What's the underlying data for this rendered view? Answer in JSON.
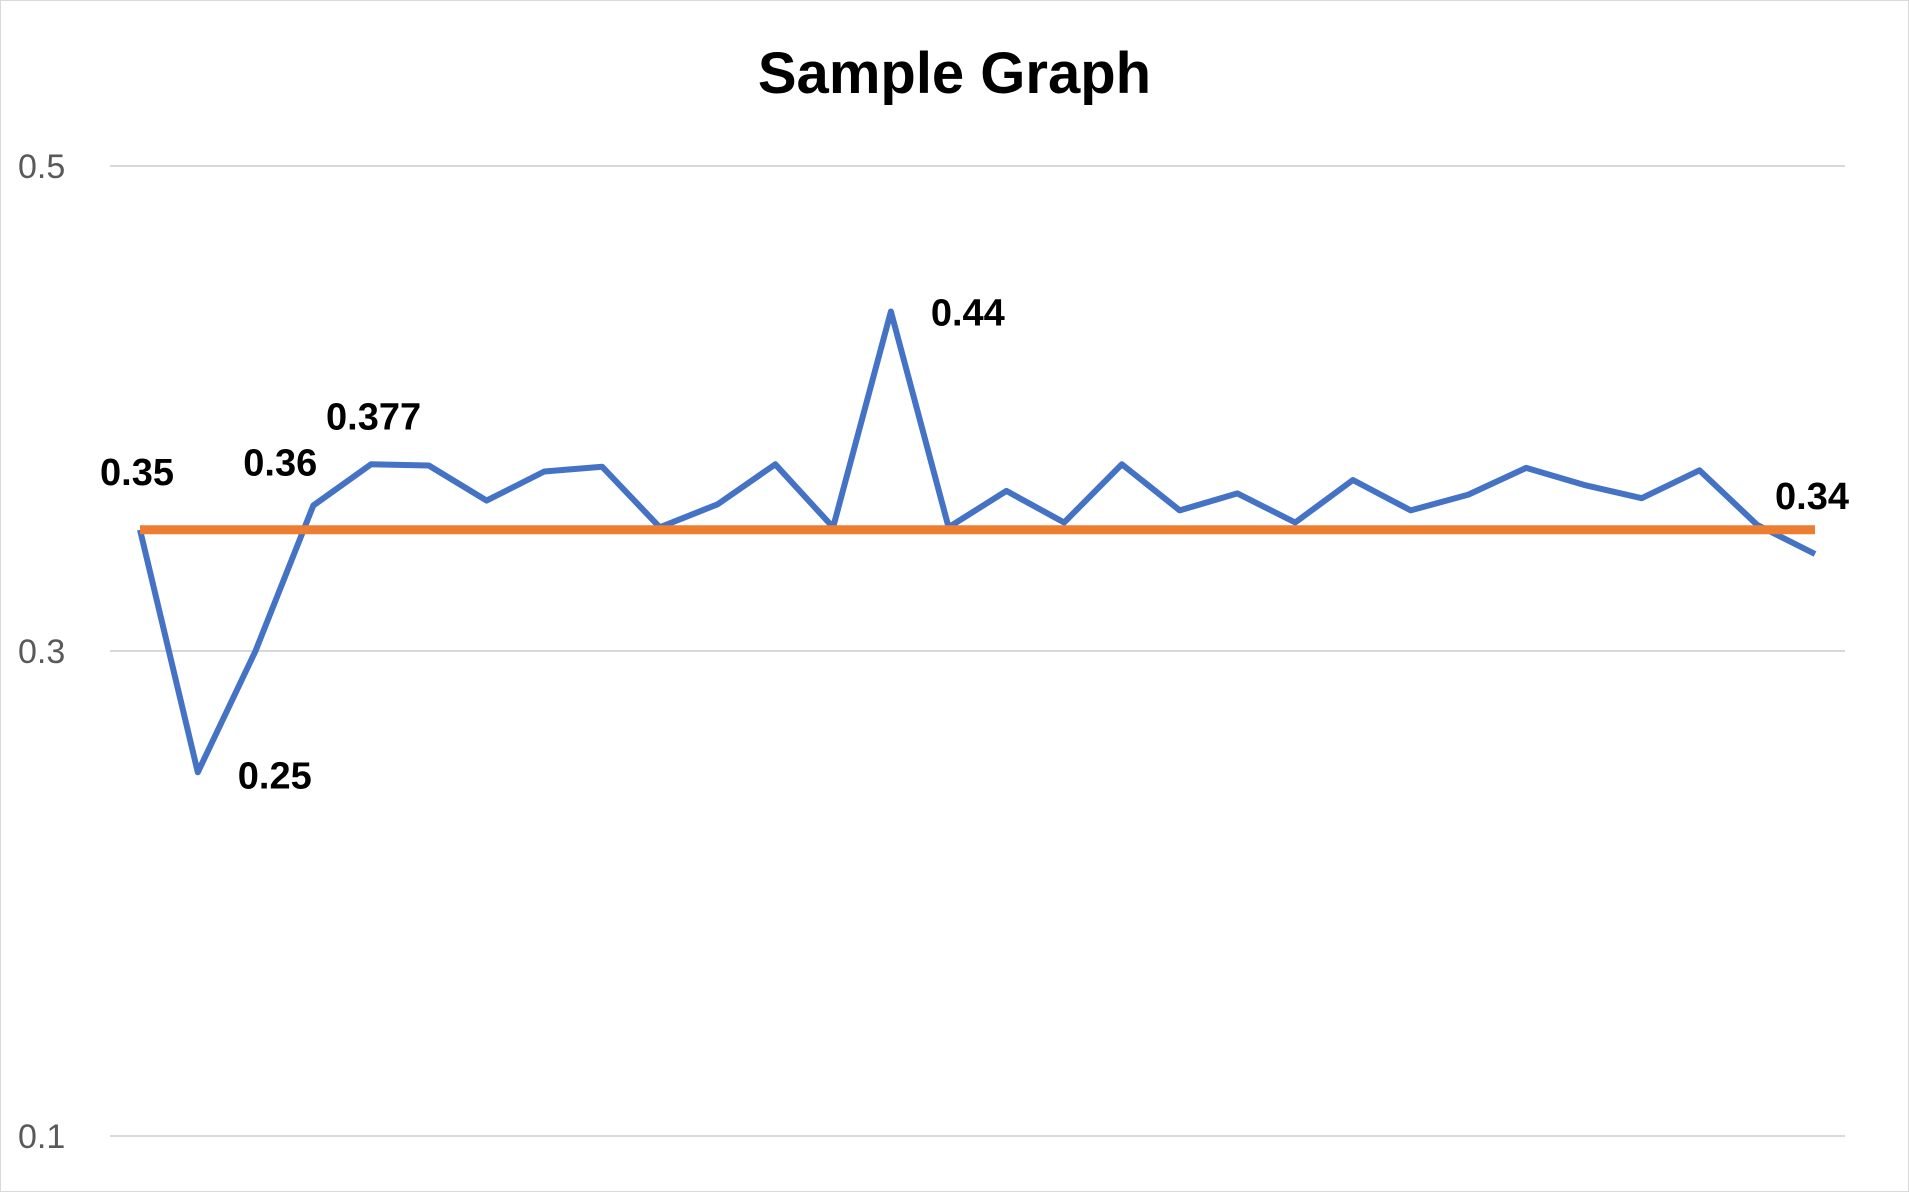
{
  "chart_data": {
    "type": "line",
    "title": "Sample Graph",
    "xlabel": "",
    "ylabel": "",
    "ylim": [
      0.1,
      0.5
    ],
    "yticks": [
      {
        "value": 0.5,
        "label": "0.5"
      },
      {
        "value": 0.3,
        "label": "0.3"
      },
      {
        "value": 0.1,
        "label": "0.1"
      }
    ],
    "grid": true,
    "legend": "none",
    "x": [
      1,
      2,
      3,
      4,
      5,
      6,
      7,
      8,
      9,
      10,
      11,
      12,
      13,
      14,
      15,
      16,
      17,
      18,
      19,
      20,
      21,
      22,
      23,
      24,
      25,
      26,
      27,
      28,
      29,
      30
    ],
    "series": [
      {
        "color": "#4472C4",
        "values": [
          0.35,
          0.25,
          0.3,
          0.36,
          0.377,
          0.3765,
          0.362,
          0.374,
          0.376,
          0.351,
          0.3605,
          0.377,
          0.351,
          0.44,
          0.351,
          0.366,
          0.353,
          0.377,
          0.358,
          0.365,
          0.353,
          0.3705,
          0.358,
          0.3645,
          0.3755,
          0.3685,
          0.363,
          0.3745,
          0.352,
          0.34
        ],
        "labels": [
          {
            "index": 0,
            "text": "0.35"
          },
          {
            "index": 1,
            "text": "0.25"
          },
          {
            "index": 3,
            "text": "0.36"
          },
          {
            "index": 4,
            "text": "0.377"
          },
          {
            "index": 13,
            "text": "0.44"
          },
          {
            "index": 29,
            "text": "0.34"
          }
        ]
      },
      {
        "color": "#ED7D31",
        "values": [
          0.35,
          0.35,
          0.35,
          0.35,
          0.35,
          0.35,
          0.35,
          0.35,
          0.35,
          0.35,
          0.35,
          0.35,
          0.35,
          0.35,
          0.35,
          0.35,
          0.35,
          0.35,
          0.35,
          0.35,
          0.35,
          0.35,
          0.35,
          0.35,
          0.35,
          0.35,
          0.35,
          0.35,
          0.35,
          0.35
        ]
      }
    ]
  }
}
